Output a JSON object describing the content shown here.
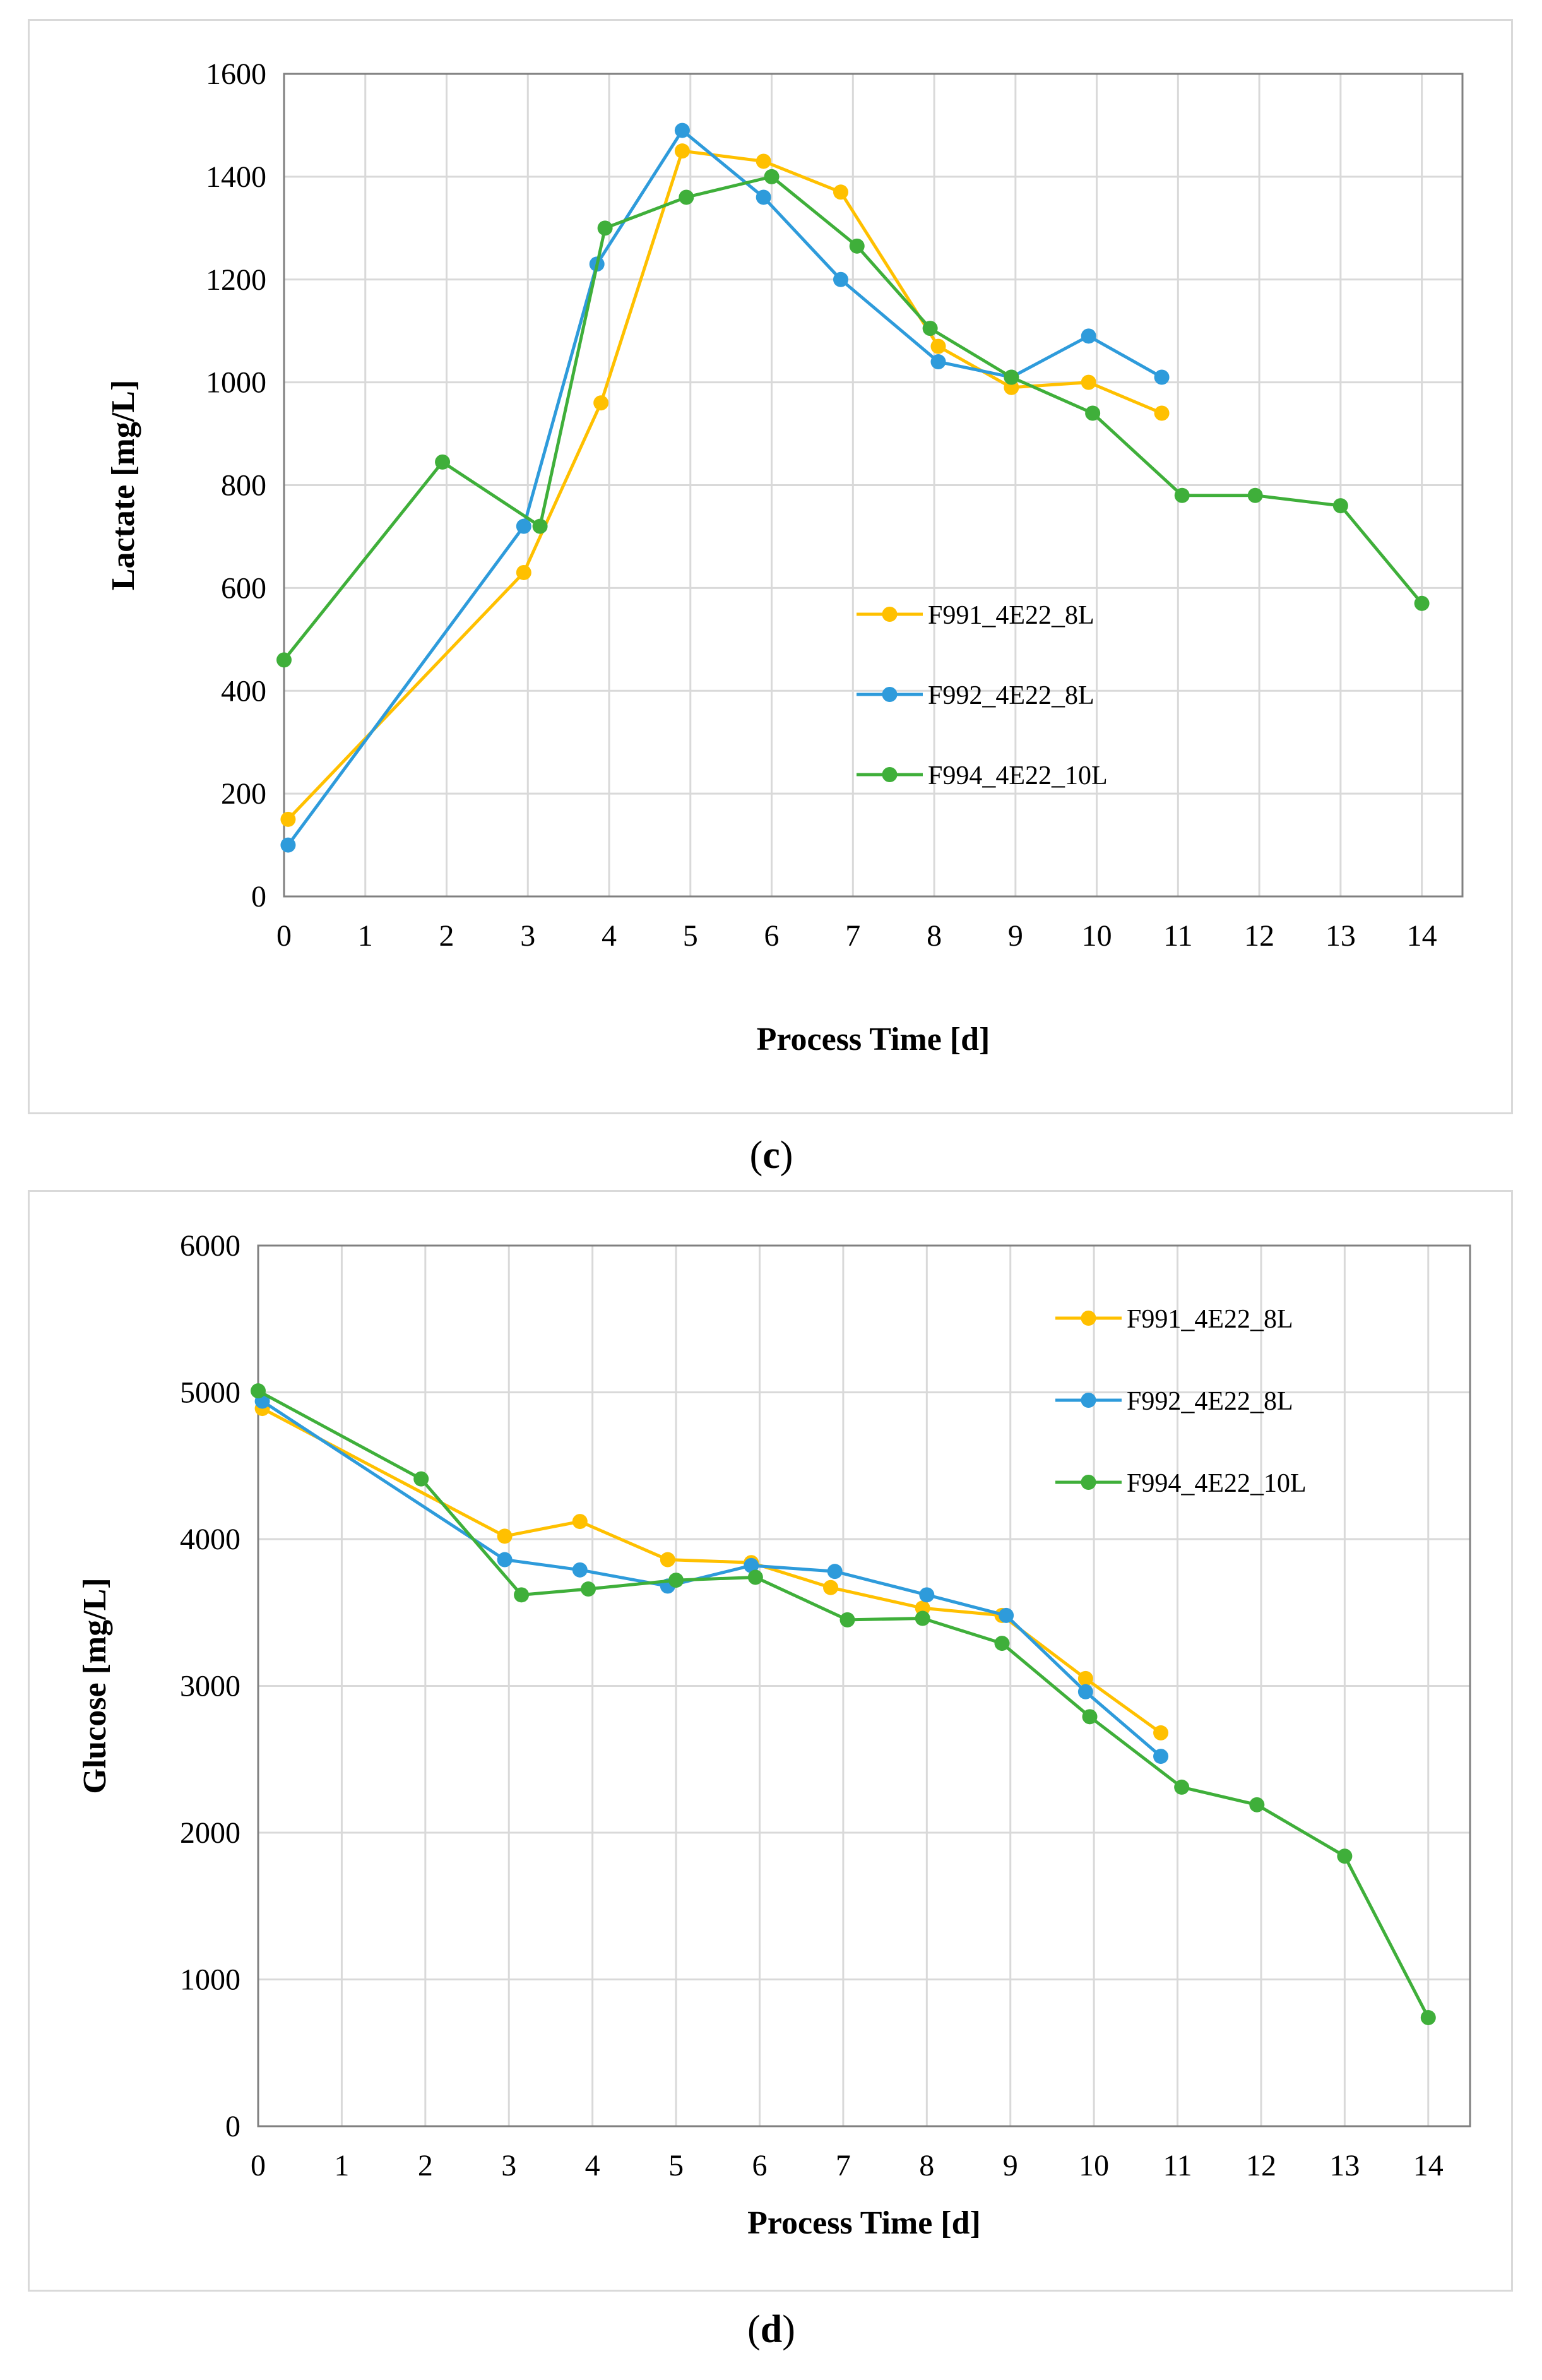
{
  "colors": {
    "F991": "#FFC000",
    "F992": "#2E9BDB",
    "F994": "#3FAF3A",
    "grid": "#D9D9D9",
    "axis": "#808080"
  },
  "panel_c": {
    "label_open": "(",
    "label_letter": "c",
    "label_close": ")"
  },
  "panel_d": {
    "label_open": "(",
    "label_letter": "d",
    "label_close": ")"
  },
  "chart_data": [
    {
      "id": "c",
      "type": "line",
      "xlabel": "Process Time [d]",
      "ylabel": "Lactate  [mg/L]",
      "xlim": [
        0,
        14.5
      ],
      "ylim": [
        0,
        1600
      ],
      "xticks": [
        0,
        1,
        2,
        3,
        4,
        5,
        6,
        7,
        8,
        9,
        10,
        11,
        12,
        13,
        14
      ],
      "yticks": [
        0,
        200,
        400,
        600,
        800,
        1000,
        1200,
        1400,
        1600
      ],
      "grid": true,
      "legend_position": "center-right",
      "series": [
        {
          "name": "F991_4E22_8L",
          "color_key": "F991",
          "x": [
            0.05,
            2.95,
            3.9,
            4.9,
            5.9,
            6.85,
            8.05,
            8.95,
            9.9,
            10.8
          ],
          "y": [
            150,
            630,
            960,
            1450,
            1430,
            1370,
            1070,
            990,
            1000,
            940
          ]
        },
        {
          "name": "F992_4E22_8L",
          "color_key": "F992",
          "x": [
            0.05,
            2.95,
            3.85,
            4.9,
            5.9,
            6.85,
            8.05,
            8.95,
            9.9,
            10.8
          ],
          "y": [
            100,
            720,
            1230,
            1490,
            1360,
            1200,
            1040,
            1010,
            1090,
            1010
          ]
        },
        {
          "name": "F994_4E22_10L",
          "color_key": "F994",
          "x": [
            0.0,
            1.95,
            3.15,
            3.95,
            4.95,
            6.0,
            7.05,
            7.95,
            8.95,
            9.95,
            11.05,
            11.95,
            13.0,
            14.0
          ],
          "y": [
            460,
            845,
            720,
            1300,
            1360,
            1400,
            1265,
            1105,
            1010,
            940,
            780,
            780,
            760,
            570
          ]
        }
      ]
    },
    {
      "id": "d",
      "type": "line",
      "xlabel": "Process Time [d]",
      "ylabel": "Glucose [mg/L]",
      "xlim": [
        0,
        14.5
      ],
      "ylim": [
        0,
        6000
      ],
      "xticks": [
        0,
        1,
        2,
        3,
        4,
        5,
        6,
        7,
        8,
        9,
        10,
        11,
        12,
        13,
        14
      ],
      "yticks": [
        0,
        1000,
        2000,
        3000,
        4000,
        5000,
        6000
      ],
      "grid": true,
      "legend_position": "top-right",
      "series": [
        {
          "name": "F991_4E22_8L",
          "color_key": "F991",
          "x": [
            0.05,
            2.95,
            3.85,
            4.9,
            5.9,
            6.85,
            7.95,
            8.9,
            9.9,
            10.8
          ],
          "y": [
            4890,
            4020,
            4120,
            3860,
            3840,
            3670,
            3530,
            3480,
            3050,
            2680
          ]
        },
        {
          "name": "F992_4E22_8L",
          "color_key": "F992",
          "x": [
            0.05,
            2.95,
            3.85,
            4.9,
            5.9,
            6.9,
            8.0,
            8.95,
            9.9,
            10.8
          ],
          "y": [
            4940,
            3860,
            3790,
            3680,
            3820,
            3780,
            3620,
            3480,
            2960,
            2520
          ]
        },
        {
          "name": "F994_4E22_10L",
          "color_key": "F994",
          "x": [
            0.0,
            1.95,
            3.15,
            3.95,
            5.0,
            5.95,
            7.05,
            7.95,
            8.9,
            9.95,
            11.05,
            11.95,
            13.0,
            14.0
          ],
          "y": [
            5010,
            4410,
            3620,
            3660,
            3720,
            3740,
            3450,
            3460,
            3290,
            2790,
            2310,
            2190,
            1840,
            740
          ]
        }
      ]
    }
  ]
}
